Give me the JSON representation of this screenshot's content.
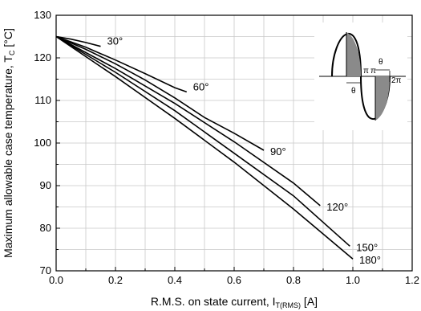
{
  "chart_data": {
    "type": "line",
    "xlabel": "R.M.S. on state current, I",
    "xlabel_sub": "T(RMS)",
    "xlabel_unit": " [A]",
    "ylabel": "Maximum allowable case temperature, T",
    "ylabel_sub": "C",
    "ylabel_unit": " [°C]",
    "xlim": [
      0.0,
      1.2
    ],
    "ylim": [
      70,
      130
    ],
    "x_ticks": [
      "0.0",
      "0.2",
      "0.4",
      "0.6",
      "0.8",
      "1.0",
      "1.2"
    ],
    "y_ticks": [
      "70",
      "80",
      "90",
      "100",
      "110",
      "120",
      "130"
    ],
    "grid": true,
    "series": [
      {
        "name": "30°",
        "x": [
          0,
          0.05,
          0.1,
          0.15
        ],
        "y": [
          125,
          124.4,
          123.6,
          122.7
        ]
      },
      {
        "name": "60°",
        "x": [
          0,
          0.1,
          0.2,
          0.3,
          0.4,
          0.44
        ],
        "y": [
          125,
          122.5,
          119.5,
          116.3,
          113.0,
          112.0
        ]
      },
      {
        "name": "90°",
        "x": [
          0,
          0.1,
          0.2,
          0.3,
          0.4,
          0.5,
          0.6,
          0.7
        ],
        "y": [
          125,
          122,
          118.6,
          114.8,
          110.6,
          106.0,
          102.3,
          98.3
        ]
      },
      {
        "name": "120°",
        "x": [
          0,
          0.2,
          0.4,
          0.6,
          0.8,
          0.89
        ],
        "y": [
          125,
          117.5,
          109.3,
          100.3,
          90.6,
          85.3
        ]
      },
      {
        "name": "150°",
        "x": [
          0,
          0.2,
          0.4,
          0.6,
          0.8,
          0.99
        ],
        "y": [
          125,
          116.6,
          107.6,
          97.6,
          87.6,
          75.8
        ]
      },
      {
        "name": "180°",
        "x": [
          0,
          0.2,
          0.4,
          0.6,
          0.8,
          1.0
        ],
        "y": [
          125,
          115.6,
          105.8,
          95.5,
          84.5,
          72.8
        ]
      }
    ],
    "inset": {
      "labels": [
        "π",
        "θ",
        "θ",
        "π",
        "2π"
      ]
    }
  }
}
